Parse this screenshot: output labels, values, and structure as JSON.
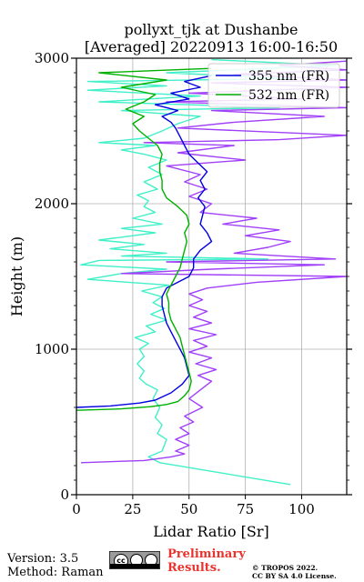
{
  "chart_data": {
    "type": "line",
    "title": "pollyxt_tjk at Dushanbe",
    "subtitle": "[Averaged] 20220913 16:00-16:50",
    "xlabel": "Lidar Ratio [Sr]",
    "ylabel": "Height (m)",
    "xlim": [
      0,
      120
    ],
    "ylim": [
      0,
      3000
    ],
    "xticks": [
      0,
      25,
      50,
      75,
      100
    ],
    "yticks": [
      0,
      1000,
      2000,
      3000
    ],
    "grid": true,
    "legend_position": "top-right",
    "series": [
      {
        "name": "",
        "color": "#40f0c8",
        "points": [
          [
            95,
            70
          ],
          [
            37,
            220
          ],
          [
            32,
            260
          ],
          [
            38,
            300
          ],
          [
            40,
            380
          ],
          [
            36,
            420
          ],
          [
            38,
            480
          ],
          [
            35,
            530
          ],
          [
            37,
            600
          ],
          [
            34,
            660
          ],
          [
            36,
            720
          ],
          [
            31,
            760
          ],
          [
            28,
            800
          ],
          [
            30,
            850
          ],
          [
            27,
            900
          ],
          [
            30,
            950
          ],
          [
            28,
            1000
          ],
          [
            32,
            1040
          ],
          [
            26,
            1080
          ],
          [
            35,
            1120
          ],
          [
            31,
            1160
          ],
          [
            40,
            1200
          ],
          [
            33,
            1240
          ],
          [
            39,
            1280
          ],
          [
            34,
            1320
          ],
          [
            38,
            1360
          ],
          [
            29,
            1400
          ],
          [
            41,
            1440
          ],
          [
            5,
            1480
          ],
          [
            20,
            1520
          ],
          [
            40,
            1550
          ],
          [
            2,
            1580
          ],
          [
            10,
            1610
          ],
          [
            85,
            1620
          ],
          [
            20,
            1640
          ],
          [
            40,
            1660
          ],
          [
            15,
            1690
          ],
          [
            30,
            1720
          ],
          [
            10,
            1750
          ],
          [
            25,
            1780
          ],
          [
            35,
            1800
          ],
          [
            20,
            1830
          ],
          [
            38,
            1860
          ],
          [
            25,
            1900
          ],
          [
            35,
            1940
          ],
          [
            30,
            1980
          ],
          [
            32,
            2020
          ],
          [
            27,
            2060
          ],
          [
            36,
            2100
          ],
          [
            30,
            2150
          ],
          [
            38,
            2200
          ],
          [
            32,
            2250
          ],
          [
            40,
            2300
          ],
          [
            30,
            2340
          ],
          [
            20,
            2370
          ],
          [
            35,
            2400
          ],
          [
            10,
            2420
          ],
          [
            30,
            2450
          ],
          [
            38,
            2500
          ],
          [
            45,
            2550
          ],
          [
            55,
            2600
          ],
          [
            20,
            2640
          ],
          [
            90,
            2660
          ],
          [
            10,
            2700
          ],
          [
            55,
            2740
          ],
          [
            5,
            2780
          ],
          [
            40,
            2810
          ],
          [
            5,
            2840
          ],
          [
            95,
            2860
          ],
          [
            40,
            2900
          ],
          [
            115,
            2950
          ],
          [
            60,
            2990
          ]
        ]
      },
      {
        "name": "",
        "color": "#a040f8",
        "points": [
          [
            2,
            220
          ],
          [
            30,
            235
          ],
          [
            42,
            260
          ],
          [
            48,
            280
          ],
          [
            44,
            300
          ],
          [
            50,
            340
          ],
          [
            44,
            380
          ],
          [
            50,
            420
          ],
          [
            46,
            460
          ],
          [
            52,
            500
          ],
          [
            48,
            540
          ],
          [
            56,
            600
          ],
          [
            50,
            660
          ],
          [
            55,
            720
          ],
          [
            60,
            780
          ],
          [
            54,
            820
          ],
          [
            62,
            860
          ],
          [
            53,
            900
          ],
          [
            60,
            940
          ],
          [
            50,
            980
          ],
          [
            58,
            1020
          ],
          [
            52,
            1060
          ],
          [
            62,
            1100
          ],
          [
            50,
            1140
          ],
          [
            60,
            1180
          ],
          [
            52,
            1220
          ],
          [
            58,
            1260
          ],
          [
            50,
            1300
          ],
          [
            56,
            1340
          ],
          [
            50,
            1380
          ],
          [
            58,
            1420
          ],
          [
            80,
            1460
          ],
          [
            120,
            1500
          ],
          [
            20,
            1520
          ],
          [
            60,
            1550
          ],
          [
            110,
            1580
          ],
          [
            40,
            1600
          ],
          [
            115,
            1620
          ],
          [
            70,
            1660
          ],
          [
            85,
            1700
          ],
          [
            95,
            1740
          ],
          [
            75,
            1780
          ],
          [
            90,
            1820
          ],
          [
            65,
            1860
          ],
          [
            80,
            1900
          ],
          [
            55,
            1940
          ],
          [
            60,
            2000
          ],
          [
            50,
            2050
          ],
          [
            58,
            2100
          ],
          [
            48,
            2150
          ],
          [
            55,
            2200
          ],
          [
            40,
            2260
          ],
          [
            75,
            2300
          ],
          [
            45,
            2350
          ],
          [
            70,
            2400
          ],
          [
            30,
            2420
          ],
          [
            90,
            2440
          ],
          [
            120,
            2470
          ],
          [
            45,
            2520
          ],
          [
            70,
            2560
          ],
          [
            110,
            2600
          ],
          [
            60,
            2640
          ],
          [
            120,
            2660
          ],
          [
            40,
            2700
          ],
          [
            100,
            2720
          ],
          [
            50,
            2760
          ],
          [
            120,
            2800
          ],
          [
            60,
            2830
          ],
          [
            120,
            2850
          ],
          [
            70,
            2890
          ],
          [
            120,
            2920
          ],
          [
            90,
            2950
          ],
          [
            120,
            2980
          ]
        ]
      },
      {
        "name": "355 nm (FR)",
        "color": "#0000e0",
        "points": [
          [
            0,
            600
          ],
          [
            15,
            610
          ],
          [
            28,
            630
          ],
          [
            35,
            650
          ],
          [
            42,
            700
          ],
          [
            47,
            760
          ],
          [
            50,
            820
          ],
          [
            49,
            880
          ],
          [
            48,
            940
          ],
          [
            46,
            1000
          ],
          [
            44,
            1060
          ],
          [
            42,
            1120
          ],
          [
            40,
            1180
          ],
          [
            39,
            1240
          ],
          [
            38,
            1300
          ],
          [
            38,
            1360
          ],
          [
            40,
            1420
          ],
          [
            45,
            1460
          ],
          [
            50,
            1500
          ],
          [
            52,
            1560
          ],
          [
            52,
            1620
          ],
          [
            55,
            1680
          ],
          [
            60,
            1740
          ],
          [
            58,
            1800
          ],
          [
            55,
            1860
          ],
          [
            56,
            1920
          ],
          [
            57,
            1980
          ],
          [
            54,
            2040
          ],
          [
            57,
            2100
          ],
          [
            55,
            2160
          ],
          [
            58,
            2220
          ],
          [
            54,
            2280
          ],
          [
            50,
            2340
          ],
          [
            48,
            2400
          ],
          [
            46,
            2460
          ],
          [
            44,
            2520
          ],
          [
            42,
            2560
          ],
          [
            38,
            2600
          ],
          [
            45,
            2640
          ],
          [
            35,
            2680
          ],
          [
            50,
            2720
          ],
          [
            42,
            2760
          ],
          [
            55,
            2800
          ],
          [
            48,
            2840
          ],
          [
            60,
            2880
          ]
        ]
      },
      {
        "name": "532 nm (FR)",
        "color": "#00b000",
        "points": [
          [
            0,
            580
          ],
          [
            20,
            590
          ],
          [
            33,
            605
          ],
          [
            40,
            620
          ],
          [
            45,
            640
          ],
          [
            48,
            680
          ],
          [
            50,
            720
          ],
          [
            51,
            780
          ],
          [
            50,
            840
          ],
          [
            49,
            900
          ],
          [
            48,
            960
          ],
          [
            47,
            1020
          ],
          [
            46,
            1080
          ],
          [
            44,
            1140
          ],
          [
            42,
            1200
          ],
          [
            41,
            1260
          ],
          [
            41,
            1320
          ],
          [
            40,
            1380
          ],
          [
            42,
            1440
          ],
          [
            44,
            1500
          ],
          [
            46,
            1560
          ],
          [
            47,
            1620
          ],
          [
            48,
            1680
          ],
          [
            49,
            1740
          ],
          [
            48,
            1800
          ],
          [
            50,
            1860
          ],
          [
            49,
            1920
          ],
          [
            45,
            1980
          ],
          [
            40,
            2040
          ],
          [
            38,
            2100
          ],
          [
            38,
            2160
          ],
          [
            37,
            2220
          ],
          [
            37,
            2280
          ],
          [
            38,
            2340
          ],
          [
            36,
            2400
          ],
          [
            32,
            2450
          ],
          [
            28,
            2500
          ],
          [
            25,
            2550
          ],
          [
            30,
            2600
          ],
          [
            22,
            2650
          ],
          [
            30,
            2700
          ],
          [
            35,
            2750
          ],
          [
            20,
            2800
          ],
          [
            40,
            2850
          ],
          [
            10,
            2900
          ],
          [
            60,
            2930
          ]
        ]
      }
    ]
  },
  "footer": {
    "version": "Version: 3.5",
    "method": "Method: Raman",
    "preliminary_line1": "Preliminary",
    "preliminary_line2": "Results.",
    "copyright_line1": "© TROPOS 2022.",
    "copyright_line2": "CC BY SA 4.0 License.",
    "badge_text": "cc"
  }
}
